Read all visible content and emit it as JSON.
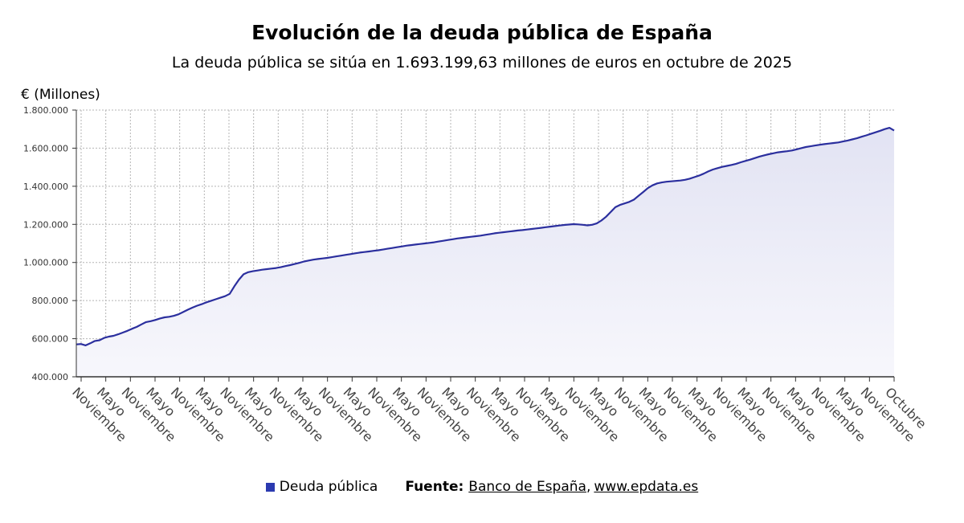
{
  "colors": {
    "line": "#2b2f9e",
    "fill_top": "#e2e3f3",
    "fill_bottom": "#f7f7fc",
    "grid": "#b5b5b5",
    "axis": "#333333",
    "legend_swatch": "#2b3ab0"
  },
  "chart_data": {
    "type": "area",
    "title": "Evolución de la deuda pública de España",
    "subtitle": "La deuda pública se sitúa en 1.693.199,63 millones de euros en octubre de 2025",
    "ylabel": "€ (Millones)",
    "xlabel": "",
    "ylim": [
      400000,
      1800000
    ],
    "y_ticks": [
      {
        "value": 400000,
        "label": "400.000"
      },
      {
        "value": 600000,
        "label": "600.000"
      },
      {
        "value": 800000,
        "label": "800.000"
      },
      {
        "value": 1000000,
        "label": "1.000.000"
      },
      {
        "value": 1200000,
        "label": "1.200.000"
      },
      {
        "value": 1400000,
        "label": "1.400.000"
      },
      {
        "value": 1600000,
        "label": "1.600.000"
      },
      {
        "value": 1800000,
        "label": "1.800.000"
      }
    ],
    "x_ticks": [
      "Noviembre",
      "Mayo",
      "Noviembre",
      "Mayo",
      "Noviembre",
      "Mayo",
      "Noviembre",
      "Mayo",
      "Noviembre",
      "Mayo",
      "Noviembre",
      "Mayo",
      "Noviembre",
      "Mayo",
      "Noviembre",
      "Mayo",
      "Noviembre",
      "Mayo",
      "Noviembre",
      "Mayo",
      "Noviembre",
      "Mayo",
      "Noviembre",
      "Mayo",
      "Noviembre",
      "Mayo",
      "Noviembre",
      "Mayo",
      "Noviembre",
      "Mayo",
      "Noviembre",
      "Mayo",
      "Noviembre",
      "Octubre"
    ],
    "grid": true,
    "legend_position": "bottom",
    "series": [
      {
        "name": "Deuda pública",
        "values": [
          570000,
          572000,
          565000,
          576000,
          588000,
          592000,
          604000,
          611000,
          615000,
          623000,
          632000,
          641000,
          652000,
          662000,
          675000,
          687000,
          692000,
          698000,
          706000,
          712000,
          715000,
          720000,
          728000,
          740000,
          752000,
          763000,
          773000,
          781000,
          791000,
          799000,
          807000,
          815000,
          823000,
          835000,
          875000,
          910000,
          938000,
          949000,
          954000,
          958000,
          962000,
          965000,
          968000,
          971000,
          975000,
          981000,
          986000,
          992000,
          998000,
          1005000,
          1010000,
          1015000,
          1018000,
          1021000,
          1024000,
          1028000,
          1032000,
          1036000,
          1040000,
          1044000,
          1048000,
          1052000,
          1055000,
          1058000,
          1061000,
          1064000,
          1068000,
          1072000,
          1076000,
          1080000,
          1084000,
          1088000,
          1091000,
          1094000,
          1097000,
          1100000,
          1103000,
          1106000,
          1110000,
          1114000,
          1118000,
          1122000,
          1126000,
          1129000,
          1132000,
          1135000,
          1138000,
          1141000,
          1145000,
          1149000,
          1153000,
          1156000,
          1159000,
          1162000,
          1165000,
          1168000,
          1170000,
          1173000,
          1176000,
          1179000,
          1182000,
          1185000,
          1188000,
          1191000,
          1194000,
          1197000,
          1199000,
          1201000,
          1200000,
          1198000,
          1195000,
          1198000,
          1205000,
          1220000,
          1240000,
          1265000,
          1290000,
          1302000,
          1310000,
          1318000,
          1330000,
          1350000,
          1370000,
          1390000,
          1405000,
          1415000,
          1420000,
          1424000,
          1426000,
          1428000,
          1430000,
          1434000,
          1440000,
          1448000,
          1456000,
          1466000,
          1478000,
          1488000,
          1495000,
          1502000,
          1507000,
          1512000,
          1518000,
          1526000,
          1533000,
          1540000,
          1548000,
          1556000,
          1562000,
          1568000,
          1573000,
          1578000,
          1581000,
          1584000,
          1588000,
          1594000,
          1600000,
          1606000,
          1610000,
          1614000,
          1618000,
          1621000,
          1624000,
          1627000,
          1630000,
          1635000,
          1640000,
          1646000,
          1652000,
          1660000,
          1667000,
          1675000,
          1683000,
          1691000,
          1700000,
          1707000,
          1693000
        ]
      }
    ]
  },
  "footer": {
    "legend_label": "Deuda pública",
    "source_label": "Fuente:",
    "source_1": "Banco de España",
    "source_sep": ",",
    "source_2": "www.epdata.es"
  }
}
